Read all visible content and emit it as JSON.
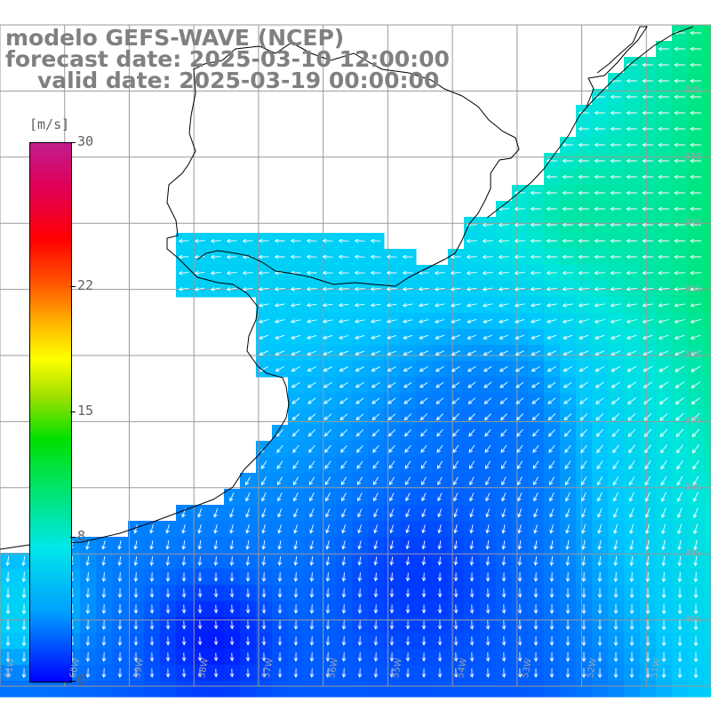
{
  "title": {
    "line1": "modelo GEFS-WAVE (NCEP)",
    "line2": "forecast date: 2025-03-10 12:00:00",
    "line3": "valid date: 2025-03-19 00:00:00"
  },
  "colorbar": {
    "units": "[m/s]",
    "min": 0,
    "max": 30,
    "ticks": [
      {
        "value": 30,
        "label": "30"
      },
      {
        "value": 22,
        "label": "22"
      },
      {
        "value": 15,
        "label": "15"
      },
      {
        "value": 8,
        "label": "8"
      },
      {
        "value": 0,
        "label": "0"
      }
    ],
    "colors": [
      "#0000ff",
      "#00a0ff",
      "#00e8e8",
      "#00e000",
      "#ffff00",
      "#ff6000",
      "#ff0000",
      "#c01e8c"
    ]
  },
  "map": {
    "variable": "wind speed and direction",
    "lon_range": [
      -61,
      -50
    ],
    "lat_range": [
      -41,
      -31
    ],
    "lat_labels": [
      {
        "value": -32,
        "label": "32S"
      },
      {
        "value": -33,
        "label": "33S"
      },
      {
        "value": -34,
        "label": "34S"
      },
      {
        "value": -35,
        "label": "35S"
      },
      {
        "value": -36,
        "label": "36S"
      },
      {
        "value": -37,
        "label": "37S"
      },
      {
        "value": -38,
        "label": "38S"
      },
      {
        "value": -39,
        "label": "39S"
      },
      {
        "value": -40,
        "label": "40S"
      }
    ],
    "lon_labels": [
      {
        "value": -61,
        "label": "61W"
      },
      {
        "value": -60,
        "label": "60W"
      },
      {
        "value": -59,
        "label": "59W"
      },
      {
        "value": -58,
        "label": "58W"
      },
      {
        "value": -57,
        "label": "57W"
      },
      {
        "value": -56,
        "label": "56W"
      },
      {
        "value": -55,
        "label": "55W"
      },
      {
        "value": -54,
        "label": "54W"
      },
      {
        "value": -53,
        "label": "53W"
      },
      {
        "value": -52,
        "label": "52W"
      },
      {
        "value": -51,
        "label": "51W"
      }
    ],
    "colors": {
      "land": "#ffffff",
      "coastline": "#000000",
      "grid": "#9a9a9a",
      "arrows": "#ffffff",
      "speed_low": "#0000ff",
      "speed_mid": "#00c8ff",
      "speed_high": "#00e060"
    }
  }
}
